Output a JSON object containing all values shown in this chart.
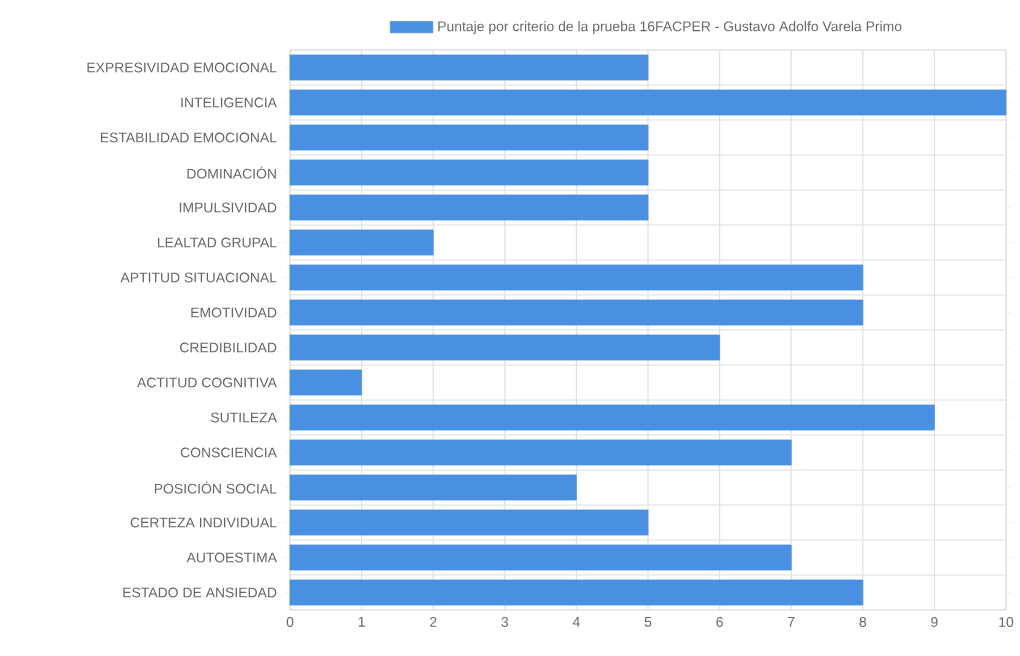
{
  "chart_data": {
    "type": "bar",
    "orientation": "horizontal",
    "categories": [
      "EXPRESIVIDAD EMOCIONAL",
      "INTELIGENCIA",
      "ESTABILIDAD EMOCIONAL",
      "DOMINACIÓN",
      "IMPULSIVIDAD",
      "LEALTAD GRUPAL",
      "APTITUD SITUACIONAL",
      "EMOTIVIDAD",
      "CREDIBILIDAD",
      "ACTITUD COGNITIVA",
      "SUTILEZA",
      "CONSCIENCIA",
      "POSICIÓN SOCIAL",
      "CERTEZA INDIVIDUAL",
      "AUTOESTIMA",
      "ESTADO DE ANSIEDAD"
    ],
    "series": [
      {
        "name": "Puntaje por criterio de la prueba 16FACPER - Gustavo Adolfo Varela Primo",
        "color": "#4a90e2",
        "values": [
          5,
          10,
          5,
          5,
          5,
          2,
          8,
          8,
          6,
          1,
          9,
          7,
          4,
          5,
          7,
          8
        ]
      }
    ],
    "xlim": [
      0,
      10
    ],
    "xticks": [
      0,
      1,
      2,
      3,
      4,
      5,
      6,
      7,
      8,
      9,
      10
    ],
    "grid": true,
    "legend": "top"
  }
}
